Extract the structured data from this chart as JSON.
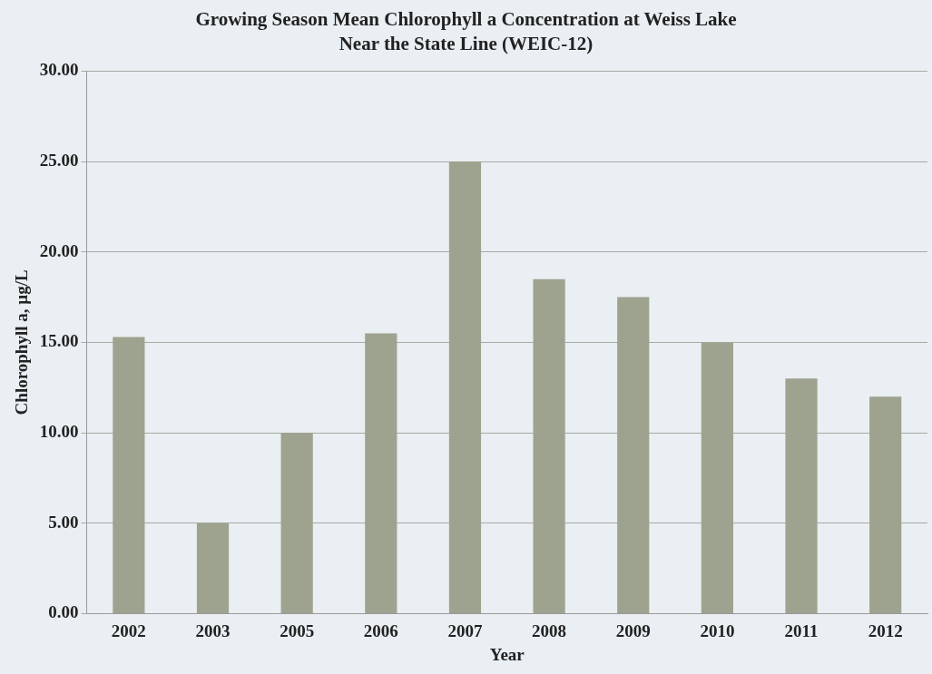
{
  "chart_data": {
    "type": "bar",
    "title": "Growing Season Mean Chlorophyll a Concentration at Weiss Lake\nNear the State Line (WEIC-12)",
    "xlabel": "Year",
    "ylabel": "Chlorophyll a, µg/L",
    "categories": [
      "2002",
      "2003",
      "2005",
      "2006",
      "2007",
      "2008",
      "2009",
      "2010",
      "2011",
      "2012"
    ],
    "values": [
      15.3,
      5.0,
      10.0,
      15.5,
      25.0,
      18.5,
      17.5,
      15.0,
      13.0,
      12.0
    ],
    "color": "#9ea38f",
    "ylim": [
      0,
      30
    ],
    "yticks": [
      {
        "value": 0,
        "label": "0.00"
      },
      {
        "value": 5,
        "label": "5.00"
      },
      {
        "value": 10,
        "label": "10.00"
      },
      {
        "value": 15,
        "label": "15.00"
      },
      {
        "value": 20,
        "label": "20.00"
      },
      {
        "value": 25,
        "label": "25.00"
      },
      {
        "value": 30,
        "label": "30.00"
      }
    ],
    "grid": "y"
  }
}
